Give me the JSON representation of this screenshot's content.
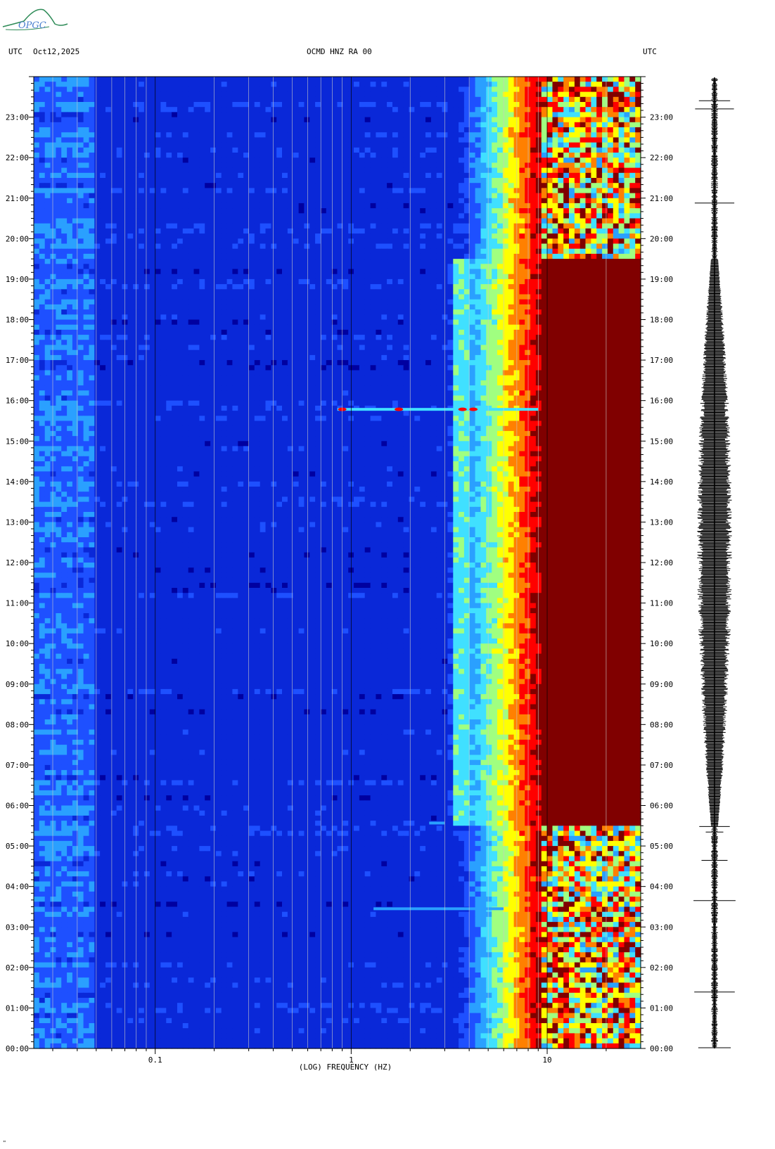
{
  "header": {
    "utc_left": "UTC",
    "date": "Oct12,2025",
    "station": "OCMD HNZ RA 00",
    "utc_right": "UTC"
  },
  "logo": {
    "text": "OPGC"
  },
  "footer_mark": "\"",
  "chart_data": {
    "type": "heatmap",
    "title": "OCMD HNZ RA 00",
    "xlabel": "(LOG) FREQUENCY (HZ)",
    "x_scale": "log",
    "xlim": [
      0.024,
      30
    ],
    "x_ticks": [
      {
        "value": 0.1,
        "label": "0.1"
      },
      {
        "value": 1,
        "label": "1"
      },
      {
        "value": 10,
        "label": "10"
      }
    ],
    "ylabel": "UTC",
    "ylim": [
      0,
      24
    ],
    "y_ticks": [
      "00:00",
      "01:00",
      "02:00",
      "03:00",
      "04:00",
      "05:00",
      "06:00",
      "07:00",
      "08:00",
      "09:00",
      "10:00",
      "11:00",
      "12:00",
      "13:00",
      "14:00",
      "15:00",
      "16:00",
      "17:00",
      "18:00",
      "19:00",
      "20:00",
      "21:00",
      "22:00",
      "23:00"
    ],
    "colormap": [
      "#0000a0",
      "#0a28d8",
      "#1e50ff",
      "#2aa0ff",
      "#40e0ff",
      "#a0ff80",
      "#ffff00",
      "#ff8000",
      "#ff0000",
      "#800000"
    ],
    "gridlines_hz": [
      0.03,
      0.04,
      0.05,
      0.06,
      0.07,
      0.08,
      0.09,
      0.1,
      0.2,
      0.3,
      0.4,
      0.5,
      0.6,
      0.7,
      0.8,
      0.9,
      1,
      2,
      3,
      4,
      5,
      6,
      7,
      8,
      9,
      10,
      20
    ],
    "noise_edge_hz": {
      "night": 6.5,
      "day": 5.5,
      "saturation": 9.5
    },
    "events": [
      {
        "time": "15:47",
        "fmin": 0.85,
        "fmax": 9.0
      },
      {
        "time": "03:27",
        "fmin": 1.3,
        "fmax": 6.0
      },
      {
        "time": "05:34",
        "fmin": 2.5,
        "fmax": 3.0
      }
    ],
    "seismogram": {
      "label": "trace",
      "quiet_hours": [
        [
          0,
          5.5
        ],
        [
          19.5,
          24
        ]
      ],
      "active_hours": [
        5.5,
        19.5
      ]
    }
  }
}
